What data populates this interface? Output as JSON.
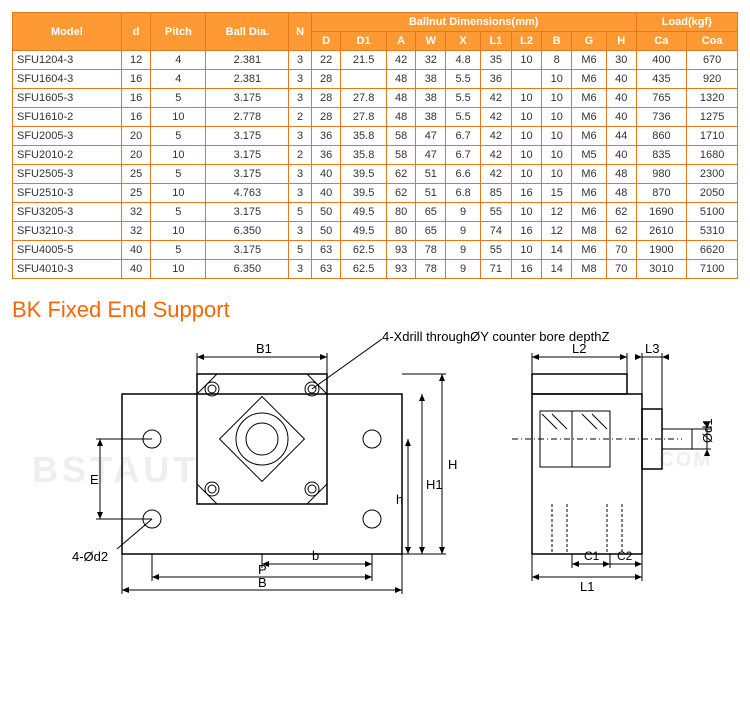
{
  "table": {
    "header_group_ballnut": "Ballnut Dimensions(mm)",
    "header_group_load": "Load(kgf)",
    "columns": [
      "Model",
      "d",
      "Pitch",
      "Ball Dia.",
      "N",
      "D",
      "D1",
      "A",
      "W",
      "X",
      "L1",
      "L2",
      "B",
      "G",
      "H",
      "Ca",
      "Coa"
    ],
    "rows": [
      [
        "SFU1204-3",
        "12",
        "4",
        "2.381",
        "3",
        "22",
        "21.5",
        "42",
        "32",
        "4.8",
        "35",
        "10",
        "8",
        "M6",
        "30",
        "400",
        "670"
      ],
      [
        "SFU1604-3",
        "16",
        "4",
        "2.381",
        "3",
        "28",
        "",
        "48",
        "38",
        "5.5",
        "36",
        "",
        "10",
        "M6",
        "40",
        "435",
        "920"
      ],
      [
        "SFU1605-3",
        "16",
        "5",
        "3.175",
        "3",
        "28",
        "27.8",
        "48",
        "38",
        "5.5",
        "42",
        "10",
        "10",
        "M6",
        "40",
        "765",
        "1320"
      ],
      [
        "SFU1610-2",
        "16",
        "10",
        "2.778",
        "2",
        "28",
        "27.8",
        "48",
        "38",
        "5.5",
        "42",
        "10",
        "10",
        "M6",
        "40",
        "736",
        "1275"
      ],
      [
        "SFU2005-3",
        "20",
        "5",
        "3.175",
        "3",
        "36",
        "35.8",
        "58",
        "47",
        "6.7",
        "42",
        "10",
        "10",
        "M6",
        "44",
        "860",
        "1710"
      ],
      [
        "SFU2010-2",
        "20",
        "10",
        "3.175",
        "2",
        "36",
        "35.8",
        "58",
        "47",
        "6.7",
        "42",
        "10",
        "10",
        "M5",
        "40",
        "835",
        "1680"
      ],
      [
        "SFU2505-3",
        "25",
        "5",
        "3.175",
        "3",
        "40",
        "39.5",
        "62",
        "51",
        "6.6",
        "42",
        "10",
        "10",
        "M6",
        "48",
        "980",
        "2300"
      ],
      [
        "SFU2510-3",
        "25",
        "10",
        "4.763",
        "3",
        "40",
        "39.5",
        "62",
        "51",
        "6.8",
        "85",
        "16",
        "15",
        "M6",
        "48",
        "870",
        "2050"
      ],
      [
        "SFU3205-3",
        "32",
        "5",
        "3.175",
        "5",
        "50",
        "49.5",
        "80",
        "65",
        "9",
        "55",
        "10",
        "12",
        "M6",
        "62",
        "1690",
        "5100"
      ],
      [
        "SFU3210-3",
        "32",
        "10",
        "6.350",
        "3",
        "50",
        "49.5",
        "80",
        "65",
        "9",
        "74",
        "16",
        "12",
        "M8",
        "62",
        "2610",
        "5310"
      ],
      [
        "SFU4005-5",
        "40",
        "5",
        "3.175",
        "5",
        "63",
        "62.5",
        "93",
        "78",
        "9",
        "55",
        "10",
        "14",
        "M6",
        "70",
        "1900",
        "6620"
      ],
      [
        "SFU4010-3",
        "40",
        "10",
        "6.350",
        "3",
        "63",
        "62.5",
        "93",
        "78",
        "9",
        "71",
        "16",
        "14",
        "M8",
        "70",
        "3010",
        "7100"
      ]
    ]
  },
  "section": {
    "title": "BK Fixed End Support",
    "callout_note": "4-Xdrill throughØY counter bore depthZ",
    "labels": {
      "B1": "B1",
      "B": "B",
      "P": "P",
      "b": "b",
      "E": "E",
      "H": "H",
      "H1": "H1",
      "h": "h",
      "d2": "4-Ød2",
      "L1": "L1",
      "L2": "L2",
      "L3": "L3",
      "C1": "C1",
      "C2": "C2",
      "d1": "Ød1"
    }
  },
  "style": {
    "header_bg": "#ff9933",
    "border": "#e67817",
    "title_color": "#ff6600"
  }
}
